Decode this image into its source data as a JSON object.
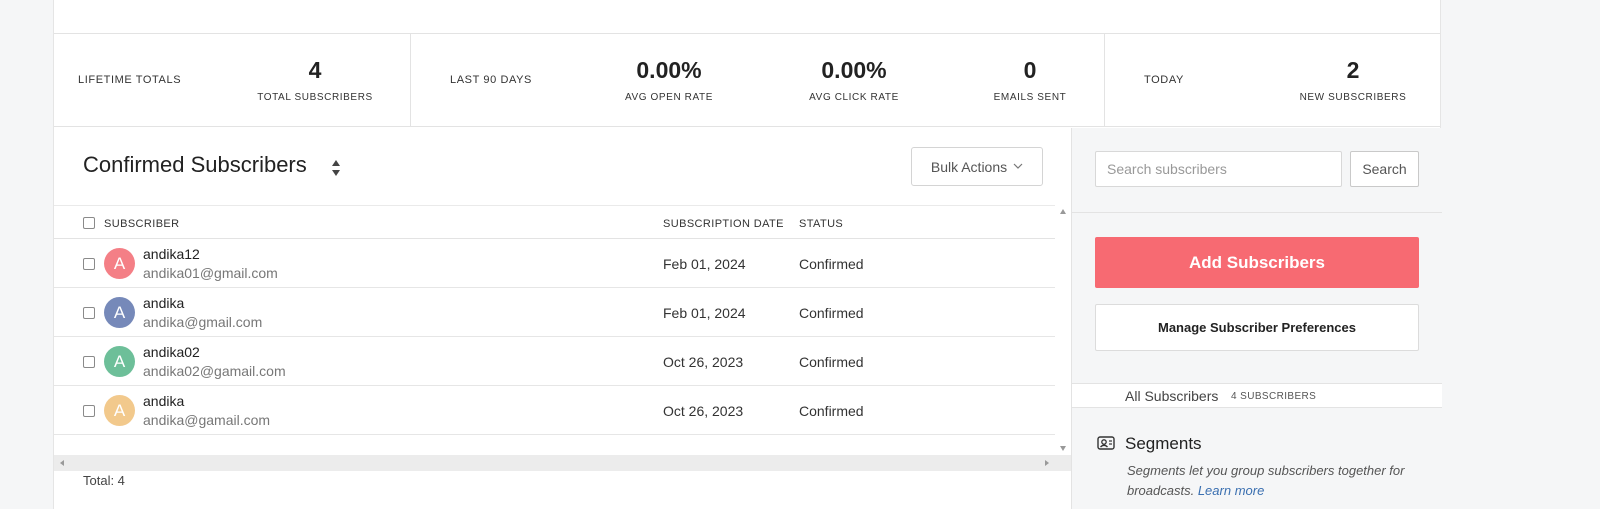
{
  "stats": {
    "lifetime_heading": "LIFETIME TOTALS",
    "total_subscribers_value": "4",
    "total_subscribers_label": "TOTAL SUBSCRIBERS",
    "last90_heading": "LAST 90 DAYS",
    "avg_open_rate_value": "0.00%",
    "avg_open_rate_label": "AVG OPEN RATE",
    "avg_click_rate_value": "0.00%",
    "avg_click_rate_label": "AVG CLICK RATE",
    "emails_sent_value": "0",
    "emails_sent_label": "EMAILS SENT",
    "today_heading": "TODAY",
    "new_subscribers_value": "2",
    "new_subscribers_label": "NEW SUBSCRIBERS"
  },
  "list": {
    "title": "Confirmed Subscribers",
    "bulk_actions_label": "Bulk Actions",
    "columns": {
      "subscriber": "SUBSCRIBER",
      "subscription_date": "SUBSCRIPTION DATE",
      "status": "STATUS"
    },
    "rows": [
      {
        "initial": "A",
        "name": "andika12",
        "email": "andika01@gmail.com",
        "date": "Feb 01, 2024",
        "status": "Confirmed",
        "avatar_color": "#f47f86"
      },
      {
        "initial": "A",
        "name": "andika",
        "email": "andika@gmail.com",
        "date": "Feb 01, 2024",
        "status": "Confirmed",
        "avatar_color": "#7689b9"
      },
      {
        "initial": "A",
        "name": "andika02",
        "email": "andika02@gamail.com",
        "date": "Oct 26, 2023",
        "status": "Confirmed",
        "avatar_color": "#6dbf99"
      },
      {
        "initial": "A",
        "name": "andika",
        "email": "andika@gamail.com",
        "date": "Oct 26, 2023",
        "status": "Confirmed",
        "avatar_color": "#f2c98c"
      }
    ],
    "total_text": "Total: 4"
  },
  "sidebar": {
    "search_placeholder": "Search subscribers",
    "search_button": "Search",
    "add_button": "Add Subscribers",
    "manage_button": "Manage Subscriber Preferences",
    "all_subscribers_label": "All Subscribers",
    "all_subscribers_count": "4 SUBSCRIBERS",
    "segments_title": "Segments",
    "segments_desc": "Segments let you group subscribers together for broadcasts.",
    "segments_link": "Learn more"
  },
  "colors": {
    "accent": "#f76a72"
  }
}
